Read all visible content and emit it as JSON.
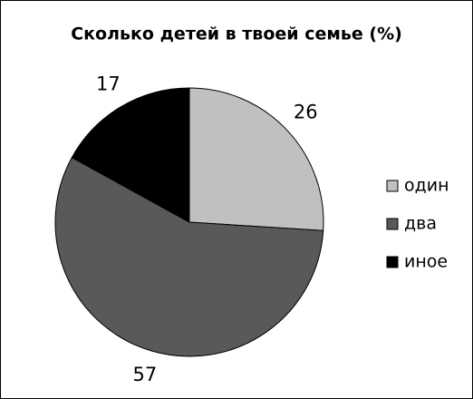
{
  "chart_data": {
    "type": "pie",
    "title": "Сколько детей в твоей семье (%)",
    "categories": [
      "один",
      "два",
      "иное"
    ],
    "values": [
      26,
      57,
      17
    ],
    "colors": [
      "#c0c0c0",
      "#595959",
      "#000000"
    ],
    "legend": "right"
  }
}
